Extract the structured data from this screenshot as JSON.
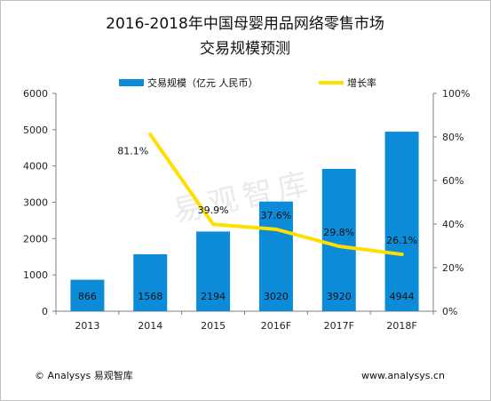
{
  "chart_data": {
    "type": "bar",
    "title_line1": "2016-2018年中国母婴用品网络零售市场",
    "title_line2": "交易规模预测",
    "categories": [
      "2013",
      "2014",
      "2015",
      "2016F",
      "2017F",
      "2018F"
    ],
    "series": [
      {
        "name": "交易规模（亿元 人民币）",
        "type": "bar",
        "axis": "left",
        "values": [
          866,
          1568,
          2194,
          3020,
          3920,
          4944
        ],
        "labels": [
          "866",
          "1568",
          "2194",
          "3020",
          "3920",
          "4944"
        ]
      },
      {
        "name": "增长率",
        "type": "line",
        "axis": "right",
        "x": [
          "2014",
          "2015",
          "2016F",
          "2017F",
          "2018F"
        ],
        "values": [
          81.1,
          39.9,
          37.6,
          29.8,
          26.1
        ],
        "labels": [
          "81.1%",
          "39.9%",
          "37.6%",
          "29.8%",
          "26.1%"
        ]
      }
    ],
    "y_left": {
      "ylim": [
        0,
        6000
      ],
      "ticks": [
        "0",
        "1000",
        "2000",
        "3000",
        "4000",
        "5000",
        "6000"
      ]
    },
    "y_right": {
      "ylim": [
        0,
        100
      ],
      "ticks": [
        "0%",
        "20%",
        "40%",
        "60%",
        "80%",
        "100%"
      ]
    },
    "grid": false,
    "legend": "top",
    "colors": {
      "bar": "#0c8bd8",
      "line": "#ffde00",
      "axis": "#7f7f7f"
    }
  },
  "watermark": "易观智库",
  "footer": {
    "left": "© Analysys 易观智库",
    "right": "www.analysys.cn"
  }
}
